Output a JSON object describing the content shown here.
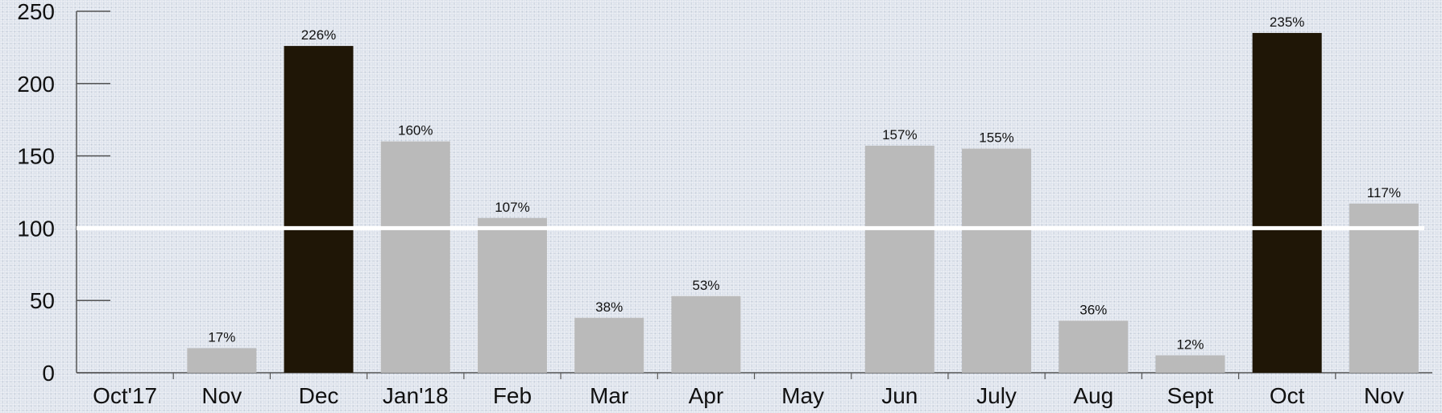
{
  "chart_data": {
    "type": "bar",
    "title": "",
    "xlabel": "",
    "ylabel": "",
    "ylim": [
      0,
      250
    ],
    "yticks": [
      0,
      50,
      100,
      150,
      200,
      250
    ],
    "reference_line": 100,
    "grid": false,
    "categories": [
      "Oct'17",
      "Nov",
      "Dec",
      "Jan'18",
      "Feb",
      "Mar",
      "Apr",
      "May",
      "Jun",
      "July",
      "Aug",
      "Sept",
      "Oct",
      "Nov"
    ],
    "values": [
      0,
      17,
      226,
      160,
      107,
      38,
      53,
      0,
      157,
      155,
      36,
      12,
      235,
      117
    ],
    "labels": [
      "",
      "17%",
      "226%",
      "160%",
      "107%",
      "38%",
      "53%",
      "",
      "157%",
      "155%",
      "36%",
      "12%",
      "235%",
      "117%"
    ],
    "highlighted": [
      false,
      false,
      true,
      false,
      false,
      false,
      false,
      false,
      false,
      false,
      false,
      false,
      true,
      false
    ],
    "colors": {
      "bar": "#bababa",
      "highlight": "#1f1606",
      "reference_line": "#ffffff",
      "axis": "#555555",
      "text": "#111111"
    }
  }
}
